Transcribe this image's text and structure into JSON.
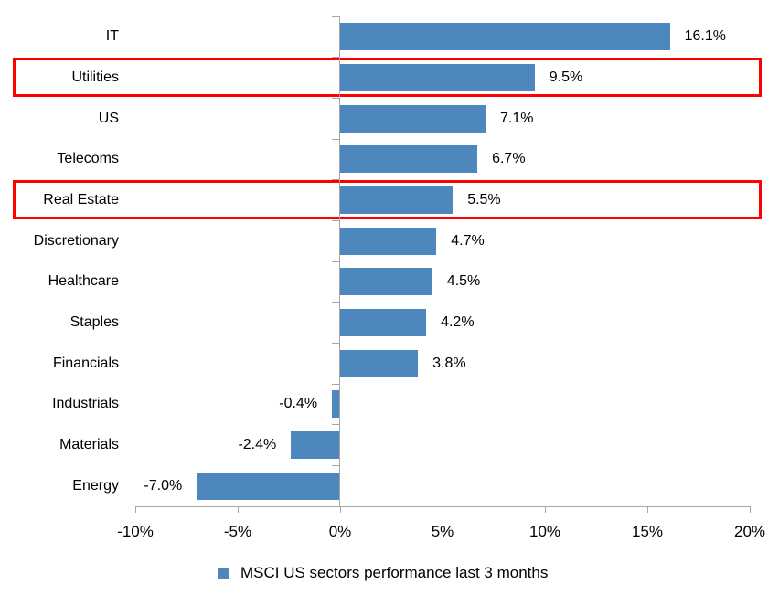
{
  "chart_data": {
    "type": "bar",
    "orientation": "horizontal",
    "categories": [
      "IT",
      "Utilities",
      "US",
      "Telecoms",
      "Real Estate",
      "Discretionary",
      "Healthcare",
      "Staples",
      "Financials",
      "Industrials",
      "Materials",
      "Energy"
    ],
    "values": [
      16.1,
      9.5,
      7.1,
      6.7,
      5.5,
      4.7,
      4.5,
      4.2,
      3.8,
      -0.4,
      -2.4,
      -7.0
    ],
    "value_labels": [
      "16.1%",
      "9.5%",
      "7.1%",
      "6.7%",
      "5.5%",
      "4.7%",
      "4.5%",
      "4.2%",
      "3.8%",
      "-0.4%",
      "-2.4%",
      "-7.0%"
    ],
    "highlighted_categories": [
      "Utilities",
      "Real Estate"
    ],
    "x_tick_labels": [
      "-10%",
      "-5%",
      "0%",
      "5%",
      "10%",
      "15%",
      "20%"
    ],
    "xlim": [
      -10,
      20
    ],
    "grid": false,
    "legend": "MSCI US sectors performance last 3 months",
    "legend_position": "bottom",
    "bar_color": "#4E86BE",
    "highlight_color": "#FF0000",
    "axis_color": "#A6A6A6",
    "text_color": "#000000"
  }
}
